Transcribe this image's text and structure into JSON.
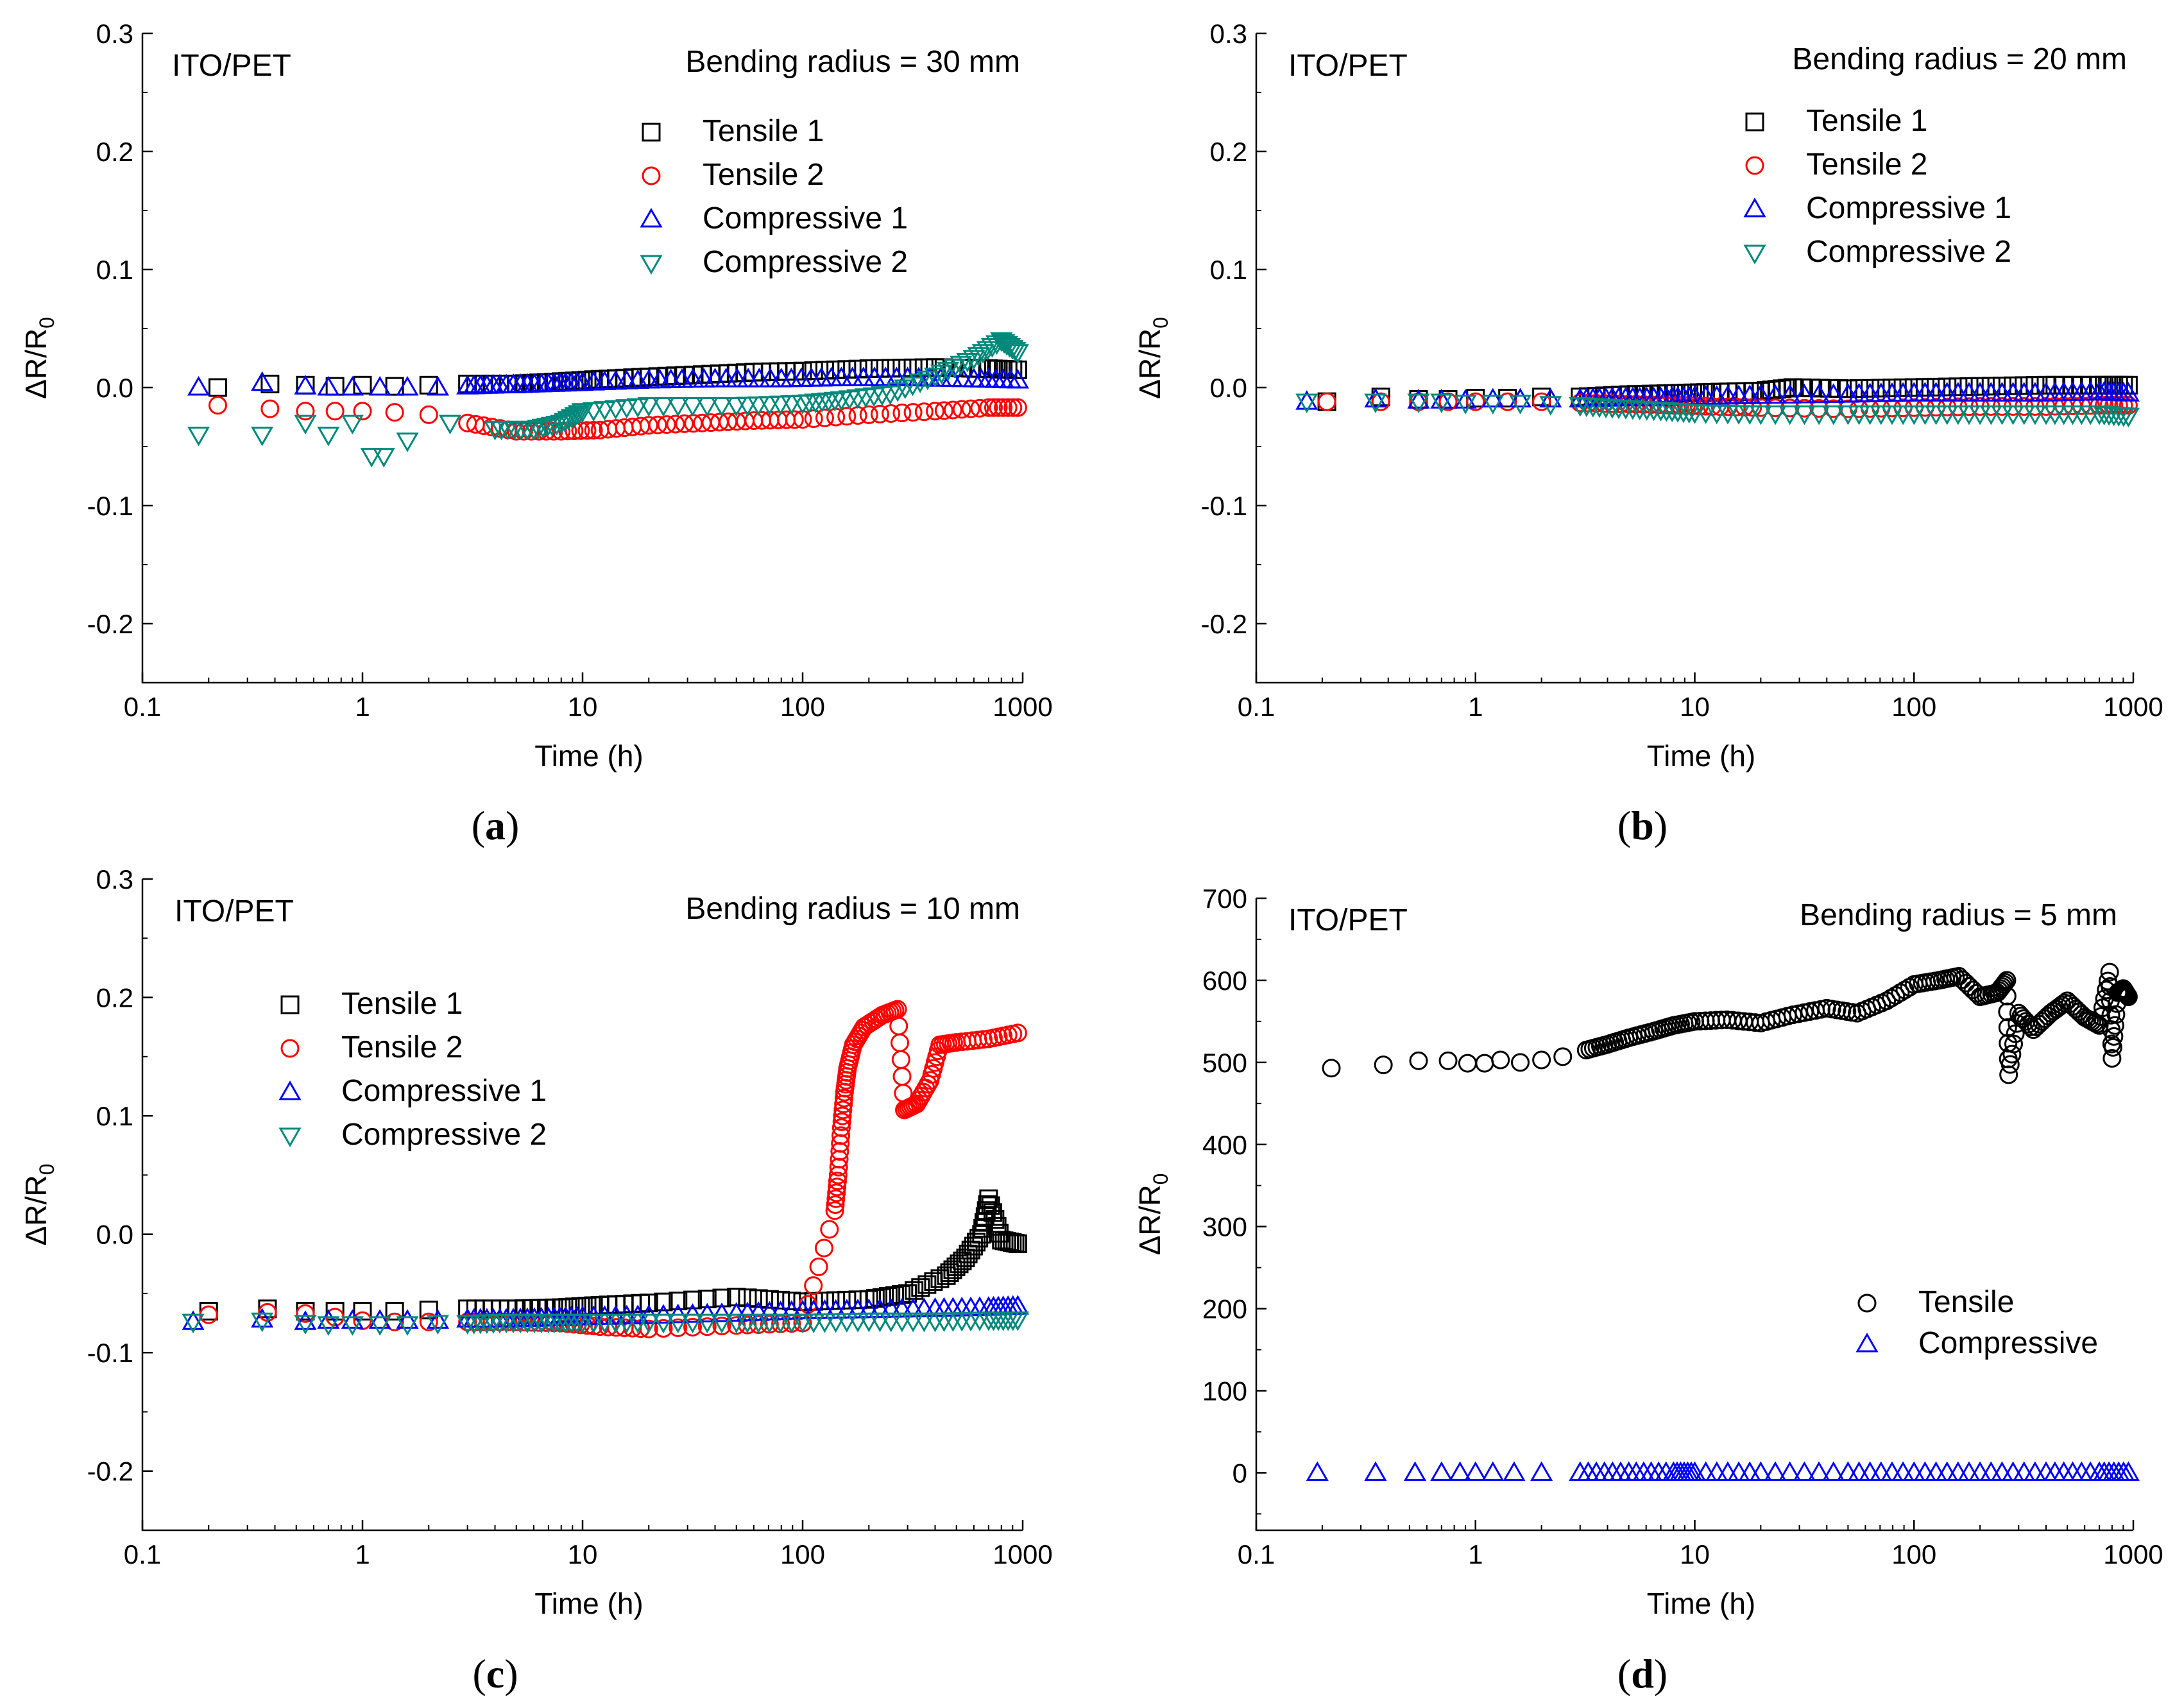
{
  "panels": [
    {
      "id": "a",
      "caption_letter": "a",
      "chart_data": {
        "type": "scatter",
        "title": "Bending radius = 30 mm",
        "annotation": "ITO/PET",
        "xlabel": "Time (h)",
        "ylabel": "ΔR/R",
        "ylabel_subscript": "0",
        "xscale": "log",
        "xlim": [
          0.1,
          1000
        ],
        "ylim": [
          -0.25,
          0.3
        ],
        "xticks": [
          "0.1",
          "1",
          "10",
          "100",
          "1000"
        ],
        "yticks": [
          "0.3",
          "0.2",
          "0.1",
          "0.0",
          "-0.1",
          "-0.2"
        ],
        "ytick_values": [
          0.3,
          0.2,
          0.1,
          0.0,
          -0.1,
          -0.2
        ],
        "grid": false,
        "legend_position": "top-right",
        "series": [
          {
            "name": "Tensile 1",
            "marker": "square",
            "color": "#000000",
            "x": [
              0.22,
              0.38,
              0.55,
              0.75,
              1.0,
              1.4,
              2,
              3,
              5,
              8,
              12,
              20,
              35,
              60,
              100,
              200,
              400,
              700,
              950
            ],
            "y": [
              0.0,
              0.003,
              0.002,
              0.001,
              0.002,
              0.001,
              0.002,
              0.003,
              0.003,
              0.005,
              0.007,
              0.009,
              0.011,
              0.013,
              0.014,
              0.016,
              0.017,
              0.016,
              0.015
            ]
          },
          {
            "name": "Tensile 2",
            "marker": "circle",
            "color": "#ff0000",
            "x": [
              0.22,
              0.38,
              0.55,
              0.75,
              1.0,
              1.4,
              2,
              3,
              5,
              8,
              12,
              20,
              35,
              60,
              100,
              200,
              400,
              700,
              950
            ],
            "y": [
              -0.015,
              -0.018,
              -0.02,
              -0.02,
              -0.02,
              -0.021,
              -0.023,
              -0.03,
              -0.037,
              -0.037,
              -0.036,
              -0.032,
              -0.03,
              -0.028,
              -0.027,
              -0.023,
              -0.02,
              -0.017,
              -0.017
            ]
          },
          {
            "name": "Compressive 1",
            "marker": "triangle-up",
            "color": "#0000ff",
            "x": [
              0.18,
              0.35,
              0.55,
              0.7,
              0.9,
              1.2,
              1.6,
              2.2,
              3,
              4.5,
              7,
              10,
              20,
              40,
              80,
              150,
              300,
              600,
              950
            ],
            "y": [
              0.0,
              0.004,
              0.001,
              0.0,
              0.0,
              0.0,
              0.0,
              0.0,
              0.001,
              0.002,
              0.003,
              0.004,
              0.006,
              0.007,
              0.007,
              0.008,
              0.008,
              0.007,
              0.006
            ]
          },
          {
            "name": "Compressive 2",
            "marker": "triangle-down",
            "color": "#00897b",
            "x": [
              0.18,
              0.35,
              0.55,
              0.7,
              0.9,
              1.1,
              1.25,
              1.6,
              2.5,
              4,
              6,
              8,
              10,
              20,
              50,
              100,
              150,
              250,
              400,
              600,
              800,
              950
            ],
            "y": [
              -0.04,
              -0.04,
              -0.03,
              -0.04,
              -0.03,
              -0.058,
              -0.058,
              -0.045,
              -0.03,
              -0.035,
              -0.035,
              -0.03,
              -0.02,
              -0.015,
              -0.015,
              -0.013,
              -0.01,
              -0.005,
              0.01,
              0.025,
              0.04,
              0.03
            ]
          }
        ]
      }
    },
    {
      "id": "b",
      "caption_letter": "b",
      "chart_data": {
        "type": "scatter",
        "title": "Bending radius = 20 mm",
        "annotation": "ITO/PET",
        "xlabel": "Time (h)",
        "ylabel": "ΔR/R",
        "ylabel_subscript": "0",
        "xscale": "log",
        "xlim": [
          0.1,
          1000
        ],
        "ylim": [
          -0.25,
          0.3
        ],
        "xticks": [
          "0.1",
          "1",
          "10",
          "100",
          "1000"
        ],
        "yticks": [
          "0.3",
          "0.2",
          "0.1",
          "0.0",
          "-0.1",
          "-0.2"
        ],
        "ytick_values": [
          0.3,
          0.2,
          0.1,
          0.0,
          -0.1,
          -0.2
        ],
        "grid": false,
        "legend_position": "top-right",
        "series": [
          {
            "name": "Tensile 1",
            "marker": "square",
            "color": "#000000",
            "x": [
              0.21,
              0.37,
              0.55,
              0.75,
              1.0,
              1.4,
              2,
              3,
              5,
              8,
              12,
              20,
              28,
              50,
              100,
              200,
              400,
              700,
              950
            ],
            "y": [
              -0.012,
              -0.008,
              -0.01,
              -0.01,
              -0.009,
              -0.009,
              -0.008,
              -0.008,
              -0.006,
              -0.005,
              -0.004,
              -0.003,
              0.0,
              -0.001,
              0.0,
              0.001,
              0.002,
              0.002,
              0.002
            ]
          },
          {
            "name": "Tensile 2",
            "marker": "circle",
            "color": "#ff0000",
            "x": [
              0.21,
              0.37,
              0.55,
              0.75,
              1.0,
              1.4,
              2,
              3,
              5,
              8,
              12,
              20,
              50,
              100,
              200,
              400,
              700,
              950
            ],
            "y": [
              -0.012,
              -0.012,
              -0.012,
              -0.012,
              -0.012,
              -0.012,
              -0.012,
              -0.013,
              -0.014,
              -0.015,
              -0.016,
              -0.017,
              -0.018,
              -0.017,
              -0.016,
              -0.016,
              -0.015,
              -0.015
            ]
          },
          {
            "name": "Compressive 1",
            "marker": "triangle-up",
            "color": "#0000ff",
            "x": [
              0.17,
              0.35,
              0.55,
              0.7,
              0.9,
              1.2,
              1.6,
              2.2,
              3,
              4.5,
              7,
              10,
              20,
              50,
              100,
              200,
              400,
              700,
              950
            ],
            "y": [
              -0.012,
              -0.01,
              -0.011,
              -0.011,
              -0.011,
              -0.01,
              -0.01,
              -0.01,
              -0.01,
              -0.009,
              -0.009,
              -0.008,
              -0.007,
              -0.006,
              -0.005,
              -0.005,
              -0.005,
              -0.004,
              -0.005
            ]
          },
          {
            "name": "Compressive 2",
            "marker": "triangle-down",
            "color": "#00897b",
            "x": [
              0.17,
              0.35,
              0.55,
              0.7,
              0.9,
              1.2,
              1.6,
              2.2,
              3,
              4.5,
              7,
              10,
              20,
              50,
              100,
              200,
              400,
              700,
              950
            ],
            "y": [
              -0.012,
              -0.012,
              -0.012,
              -0.012,
              -0.013,
              -0.013,
              -0.013,
              -0.014,
              -0.015,
              -0.017,
              -0.019,
              -0.021,
              -0.022,
              -0.022,
              -0.022,
              -0.022,
              -0.022,
              -0.022,
              -0.024
            ]
          }
        ]
      }
    },
    {
      "id": "c",
      "caption_letter": "c",
      "chart_data": {
        "type": "scatter",
        "title": "Bending radius = 10 mm",
        "annotation": "ITO/PET",
        "xlabel": "Time (h)",
        "ylabel": "ΔR/R",
        "ylabel_subscript": "0",
        "xscale": "log",
        "xlim": [
          0.1,
          1000
        ],
        "ylim": [
          -0.25,
          0.3
        ],
        "xticks": [
          "0.1",
          "1",
          "10",
          "100",
          "1000"
        ],
        "yticks": [
          "0.3",
          "0.2",
          "0.1",
          "0.0",
          "-0.1",
          "-0.2"
        ],
        "ytick_values": [
          0.3,
          0.2,
          0.1,
          0.0,
          -0.1,
          -0.2
        ],
        "grid": false,
        "legend_position": "top-left",
        "series": [
          {
            "name": "Tensile 1",
            "marker": "square",
            "color": "#000000",
            "x": [
              0.2,
              0.37,
              0.55,
              0.75,
              1.0,
              1.4,
              2,
              3,
              5,
              8,
              12,
              20,
              50,
              100,
              200,
              300,
              450,
              550,
              650,
              700,
              800,
              950
            ],
            "y": [
              -0.065,
              -0.063,
              -0.065,
              -0.065,
              -0.065,
              -0.065,
              -0.064,
              -0.063,
              -0.063,
              -0.062,
              -0.06,
              -0.058,
              -0.053,
              -0.057,
              -0.055,
              -0.05,
              -0.035,
              -0.02,
              0.0,
              0.03,
              -0.005,
              -0.008
            ]
          },
          {
            "name": "Tensile 2",
            "marker": "circle",
            "color": "#ff0000",
            "x": [
              0.2,
              0.37,
              0.55,
              0.75,
              1.0,
              1.4,
              2,
              3,
              5,
              8,
              12,
              20,
              50,
              100,
              140,
              145,
              150,
              155,
              160,
              170,
              190,
              230,
              270,
              290,
              330,
              380,
              420,
              500,
              700,
              950
            ],
            "y": [
              -0.068,
              -0.066,
              -0.067,
              -0.07,
              -0.073,
              -0.074,
              -0.074,
              -0.074,
              -0.074,
              -0.075,
              -0.078,
              -0.08,
              -0.077,
              -0.075,
              0.02,
              0.05,
              0.09,
              0.12,
              0.14,
              0.16,
              0.175,
              0.185,
              0.19,
              0.105,
              0.11,
              0.13,
              0.16,
              0.162,
              0.165,
              0.17
            ]
          },
          {
            "name": "Compressive 1",
            "marker": "triangle-up",
            "color": "#0000ff",
            "x": [
              0.17,
              0.35,
              0.55,
              0.7,
              0.9,
              1.2,
              1.6,
              2.2,
              3,
              4.5,
              7,
              10,
              20,
              50,
              100,
              200,
              400,
              700,
              950
            ],
            "y": [
              -0.074,
              -0.072,
              -0.074,
              -0.073,
              -0.073,
              -0.073,
              -0.073,
              -0.073,
              -0.072,
              -0.072,
              -0.071,
              -0.07,
              -0.069,
              -0.067,
              -0.065,
              -0.064,
              -0.063,
              -0.062,
              -0.061
            ]
          },
          {
            "name": "Compressive 2",
            "marker": "triangle-down",
            "color": "#00897b",
            "x": [
              0.17,
              0.35,
              0.55,
              0.7,
              0.9,
              1.2,
              1.6,
              2.2,
              3,
              4.5,
              7,
              10,
              20,
              50,
              100,
              200,
              400,
              700,
              950
            ],
            "y": [
              -0.074,
              -0.073,
              -0.075,
              -0.076,
              -0.076,
              -0.076,
              -0.076,
              -0.075,
              -0.075,
              -0.074,
              -0.074,
              -0.074,
              -0.074,
              -0.074,
              -0.074,
              -0.073,
              -0.073,
              -0.072,
              -0.072
            ]
          }
        ]
      }
    },
    {
      "id": "d",
      "caption_letter": "d",
      "chart_data": {
        "type": "scatter",
        "title": "Bending radius = 5 mm",
        "annotation": "ITO/PET",
        "xlabel": "Time (h)",
        "ylabel": "ΔR/R",
        "ylabel_subscript": "0",
        "xscale": "log",
        "xlim": [
          0.1,
          1000
        ],
        "ylim": [
          -70,
          700
        ],
        "xticks": [
          "0.1",
          "1",
          "10",
          "100",
          "1000"
        ],
        "yticks": [
          "700",
          "600",
          "500",
          "400",
          "300",
          "200",
          "100",
          "0"
        ],
        "ytick_values": [
          700,
          600,
          500,
          400,
          300,
          200,
          100,
          0
        ],
        "grid": false,
        "legend_position": "bottom-right",
        "series": [
          {
            "name": "Tensile",
            "marker": "circle",
            "color": "#000000",
            "x": [
              0.22,
              0.38,
              0.55,
              0.75,
              0.92,
              1.1,
              1.3,
              1.6,
              2,
              2.5,
              3.2,
              4,
              5,
              6.5,
              8,
              10,
              14,
              20,
              28,
              40,
              55,
              75,
              100,
              130,
              160,
              200,
              240,
              265,
              270,
              300,
              350,
              420,
              500,
              600,
              700,
              780,
              800,
              850,
              900,
              950
            ],
            "y": [
              493,
              497,
              502,
              502,
              499,
              499,
              503,
              500,
              503,
              507,
              515,
              522,
              530,
              538,
              545,
              550,
              552,
              548,
              558,
              566,
              560,
              575,
              595,
              600,
              605,
              580,
              585,
              600,
              485,
              560,
              540,
              560,
              575,
              555,
              545,
              610,
              505,
              585,
              590,
              580
            ]
          },
          {
            "name": "Compressive",
            "marker": "triangle-up",
            "color": "#0000ff",
            "x": [
              0.19,
              0.35,
              0.53,
              0.7,
              0.85,
              1.0,
              1.2,
              1.5,
              2,
              3,
              5,
              8,
              10,
              20,
              50,
              100,
              200,
              400,
              700,
              950
            ],
            "y": [
              0,
              0,
              0,
              0,
              0,
              0,
              0,
              0,
              0,
              0,
              0,
              0,
              0,
              0,
              0,
              0,
              0,
              0,
              0,
              0
            ]
          }
        ]
      }
    }
  ]
}
